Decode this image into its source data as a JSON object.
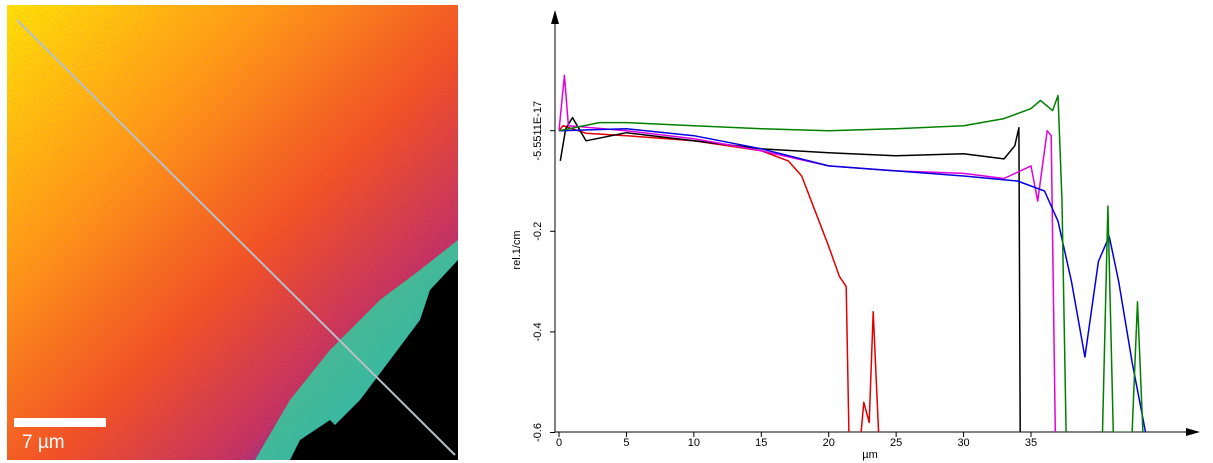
{
  "image": {
    "scale_label": "7 µm"
  },
  "chart_data": {
    "type": "line",
    "xlabel": "µm",
    "ylabel": "rel.1/cm",
    "xlim": [
      0,
      47
    ],
    "ylim": [
      -0.6,
      0.23
    ],
    "xticks": [
      0,
      5,
      10,
      15,
      20,
      25,
      30,
      35
    ],
    "yticks": [
      {
        "value": -5.5511e-17,
        "label": "-5.5511E-17"
      },
      -0.2,
      -0.4,
      -0.6
    ],
    "series": [
      {
        "color": "#e00000",
        "x": [
          0,
          0.3,
          2,
          5,
          10,
          15,
          17,
          18,
          19,
          20,
          20.8,
          21.3,
          21.5,
          22,
          22.4,
          22.6,
          23,
          23.3,
          23.7
        ],
        "values": [
          0,
          0.01,
          -0.005,
          -0.01,
          -0.02,
          -0.04,
          -0.06,
          -0.09,
          -0.16,
          -0.23,
          -0.29,
          -0.31,
          -0.6,
          null,
          -0.6,
          -0.54,
          -0.58,
          -0.36,
          -0.6
        ]
      },
      {
        "color": "#000000",
        "x": [
          0.1,
          0.5,
          1,
          2,
          5,
          10,
          15,
          20,
          25,
          30,
          33,
          33.8,
          34.1,
          34.2
        ],
        "values": [
          -0.06,
          0.004,
          0.026,
          -0.02,
          -0.004,
          -0.02,
          -0.036,
          -0.044,
          -0.05,
          -0.046,
          -0.056,
          -0.03,
          0.006,
          -0.6
        ]
      },
      {
        "color": "#e000e0",
        "x": [
          0,
          0.4,
          0.7,
          5,
          10,
          15,
          20,
          25,
          30,
          33,
          35,
          35.5,
          36.2,
          36.5,
          36.8
        ],
        "values": [
          0,
          0.11,
          0.01,
          0,
          -0.016,
          -0.04,
          -0.07,
          -0.08,
          -0.085,
          -0.095,
          -0.07,
          -0.14,
          0,
          -0.01,
          -0.6
        ]
      },
      {
        "color": "#0000e0",
        "x": [
          0,
          5,
          10,
          15,
          20,
          25,
          30,
          34,
          36,
          37,
          38,
          39,
          40,
          40.8,
          41.5,
          42.5,
          43.5
        ],
        "values": [
          0,
          0.004,
          -0.01,
          -0.036,
          -0.07,
          -0.08,
          -0.09,
          -0.1,
          -0.12,
          -0.18,
          -0.3,
          -0.45,
          -0.26,
          -0.21,
          -0.3,
          -0.46,
          -0.6
        ]
      },
      {
        "color": "#008000",
        "x": [
          0,
          3,
          5,
          10,
          15,
          20,
          25,
          30,
          33,
          35,
          35.7,
          36.6,
          37,
          37.3,
          37.6,
          38,
          40.3,
          40.7,
          41.1,
          42.5,
          42.9,
          43.3,
          45,
          46.4
        ],
        "values": [
          0,
          0.016,
          0.016,
          0.01,
          0.004,
          0,
          0.004,
          0.01,
          0.024,
          0.044,
          0.06,
          0.04,
          0.07,
          -0.14,
          -0.6,
          null,
          -0.6,
          -0.15,
          -0.6,
          -0.6,
          -0.34,
          -0.6,
          null,
          -0.54
        ]
      }
    ]
  }
}
